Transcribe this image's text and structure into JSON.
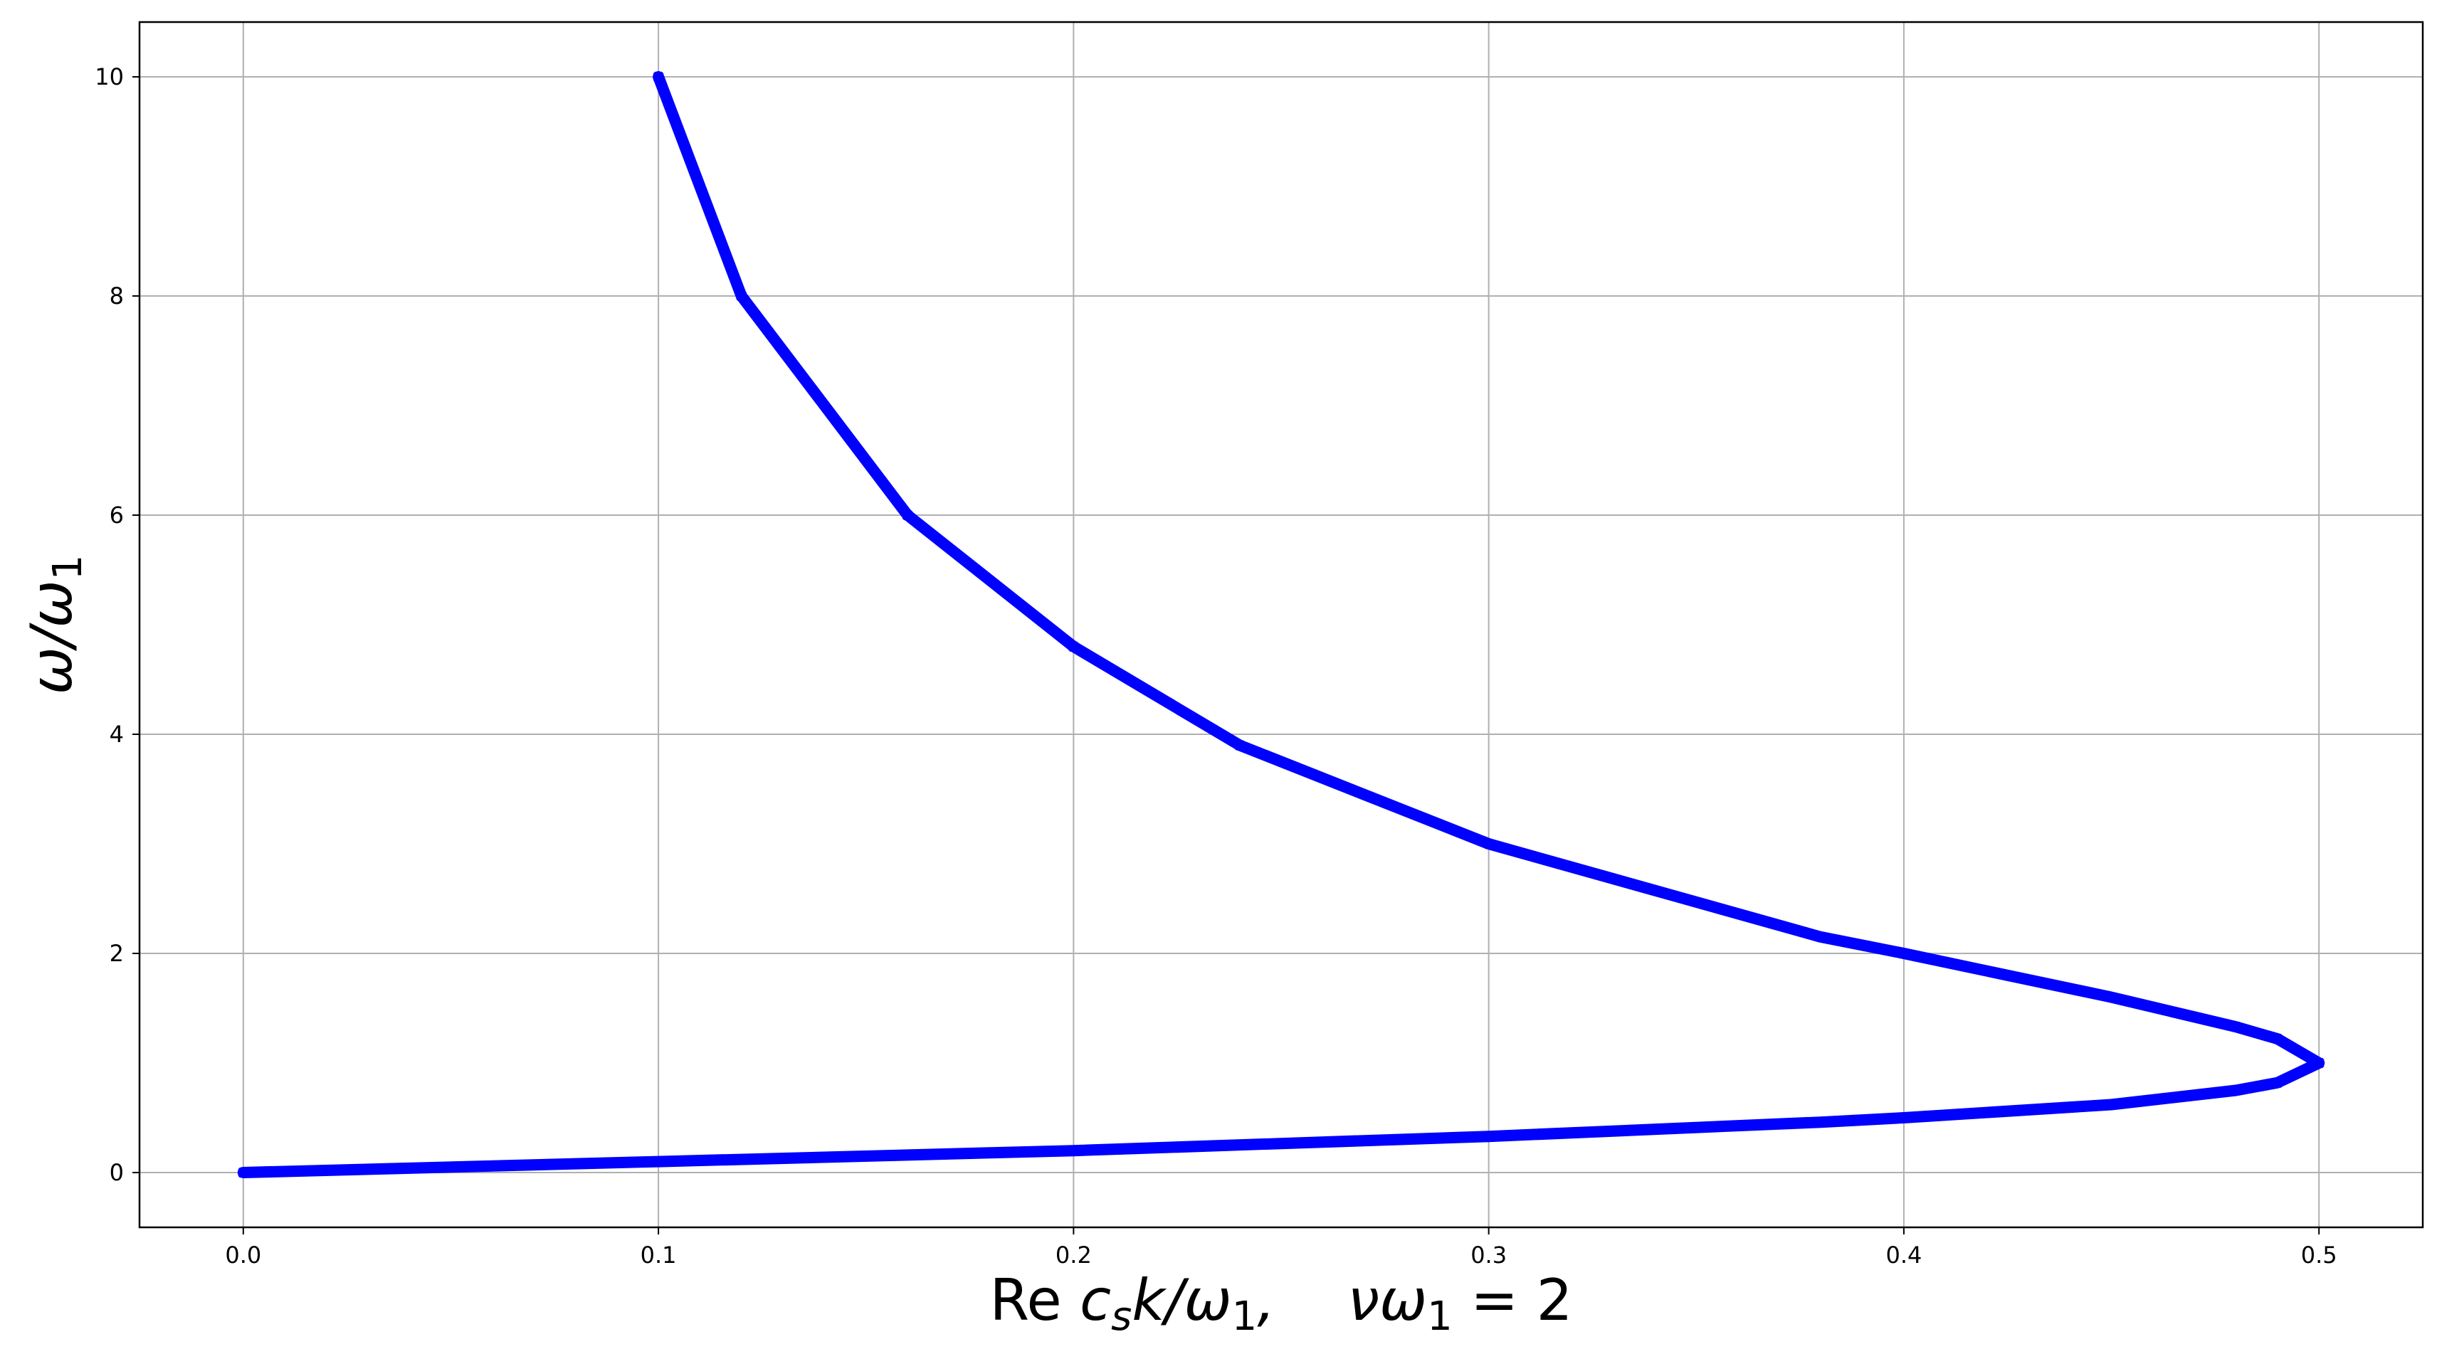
{
  "chart_data": {
    "type": "line",
    "title": "",
    "xlabel": "Re c_s k/ω_1,    νω_1 = 2",
    "xlabel_parts": {
      "re": "Re ",
      "c": "c",
      "s": "s",
      "k_over_omega": "k/ω",
      "one_a": "1",
      "comma_nu_omega": ",    νω",
      "one_b": "1",
      "equals_two": " = 2"
    },
    "ylabel": "ω/ω_1",
    "ylabel_parts": {
      "main": "ω/ω",
      "sub": "1"
    },
    "xlim": [
      -0.025,
      0.525
    ],
    "ylim": [
      -0.5,
      10.5
    ],
    "xticks": [
      0.0,
      0.1,
      0.2,
      0.3,
      0.4,
      0.5
    ],
    "xtick_labels": [
      "0.0",
      "0.1",
      "0.2",
      "0.3",
      "0.4",
      "0.5"
    ],
    "yticks": [
      0,
      2,
      4,
      6,
      8,
      10
    ],
    "ytick_labels": [
      "0",
      "2",
      "4",
      "6",
      "8",
      "10"
    ],
    "grid": true,
    "series": [
      {
        "color": "#0000ff",
        "marker": "x",
        "x": [
          0.0,
          0.1,
          0.18,
          0.2,
          0.3,
          0.38,
          0.4,
          0.45,
          0.48,
          0.49,
          0.5,
          0.49,
          0.48,
          0.45,
          0.4,
          0.38,
          0.3,
          0.24,
          0.2,
          0.16,
          0.12,
          0.1
        ],
        "y": [
          0.0,
          0.1,
          0.18,
          0.2,
          0.33,
          0.46,
          0.5,
          0.62,
          0.75,
          0.82,
          1.0,
          1.22,
          1.33,
          1.6,
          2.0,
          2.15,
          3.0,
          3.9,
          4.8,
          6.0,
          8.0,
          10.0
        ]
      }
    ]
  }
}
